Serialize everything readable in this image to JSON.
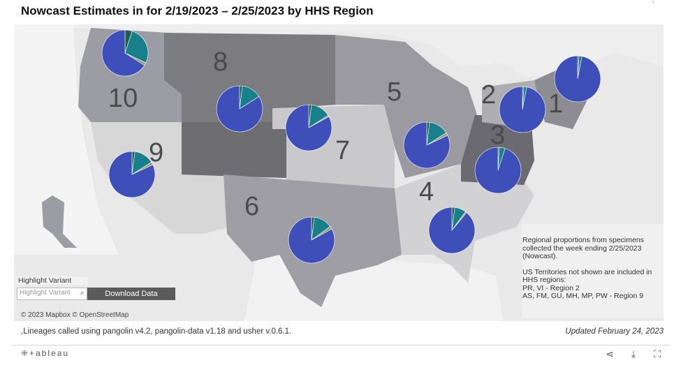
{
  "title": "Nowcast Estimates in for 2/19/2023 – 2/25/2023 by HHS Region",
  "corner_mark": "’",
  "map": {
    "regions": [
      {
        "number": "1",
        "pie": {
          "blue": 0.97,
          "teal": 0.02,
          "green": 0.01
        }
      },
      {
        "number": "2",
        "pie": {
          "blue": 0.97,
          "teal": 0.02,
          "green": 0.01
        }
      },
      {
        "number": "3",
        "pie": {
          "blue": 0.95,
          "teal": 0.04,
          "green": 0.01
        }
      },
      {
        "number": "4",
        "pie": {
          "blue": 0.89,
          "teal": 0.08,
          "green": 0.02
        }
      },
      {
        "number": "5",
        "pie": {
          "blue": 0.82,
          "teal": 0.14,
          "green": 0.02
        }
      },
      {
        "number": "6",
        "pie": {
          "blue": 0.83,
          "teal": 0.13,
          "green": 0.02
        }
      },
      {
        "number": "7",
        "pie": {
          "blue": 0.83,
          "teal": 0.14,
          "green": 0.02
        }
      },
      {
        "number": "8",
        "pie": {
          "blue": 0.84,
          "teal": 0.14,
          "green": 0.02
        }
      },
      {
        "number": "9",
        "pie": {
          "blue": 0.82,
          "teal": 0.14,
          "green": 0.02
        }
      },
      {
        "number": "10",
        "pie": {
          "blue": 0.66,
          "teal": 0.27,
          "green": 0.05
        }
      }
    ],
    "colors": {
      "blue": "#3f4fba",
      "teal": "#17808a",
      "green": "#1f5e4f",
      "other": "#9a9a7a"
    }
  },
  "info_box": {
    "line1": "Regional proportions from specimens",
    "line2": "collected the week ending 2/25/2023",
    "line3": "(Nowcast).",
    "line4": "US Territories not shown are included in",
    "line5": "HHS regions:",
    "line6": "PR, VI - Region 2",
    "line7": "AS, FM, GU, MH, MP, PW - Region 9"
  },
  "highlight": {
    "label": "Highlight Variant",
    "placeholder": "Highlight Variant",
    "download_label": "Download Data"
  },
  "attribution": "© 2023 Mapbox © OpenStreetMap",
  "lineage_note": ",Lineages called using pangolin v4.2, pangolin-data v1.18 and usher v.0.6.1.",
  "updated": "Updated February 24, 2023",
  "footer": {
    "brand": "⁜+ableau",
    "icons": [
      "share-icon",
      "download-icon",
      "fullscreen-icon"
    ]
  }
}
